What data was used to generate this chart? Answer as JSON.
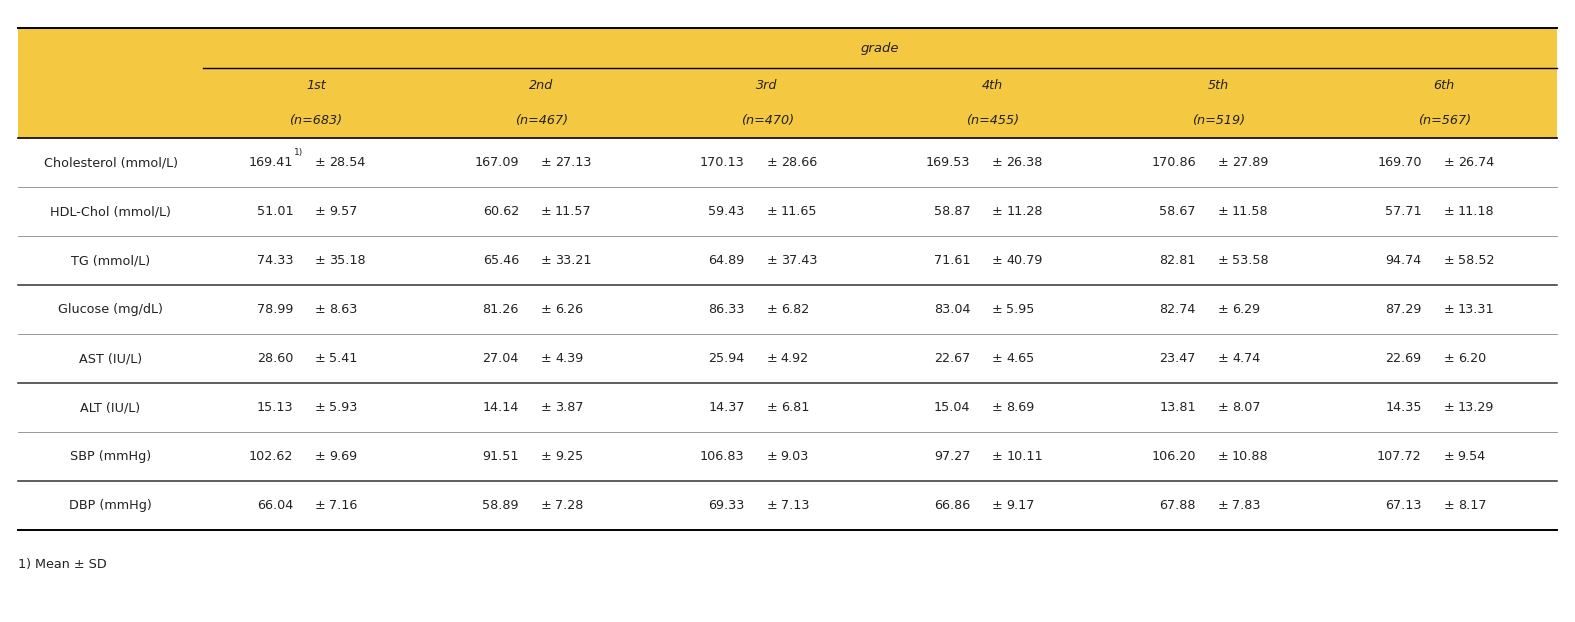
{
  "header_bg_color": "#F5C842",
  "table_bg_color": "#FFFFFF",
  "grade_label": "grade",
  "col_headers_line1": [
    "1st",
    "2nd",
    "3rd",
    "4th",
    "5th",
    "6th"
  ],
  "col_headers_line2": [
    "(n=683)",
    "(n=467)",
    "(n=470)",
    "(n=455)",
    "(n=519)",
    "(n=567)"
  ],
  "row_labels": [
    "Cholesterol (mmol/L)",
    "HDL-Chol (mmol/L)",
    "TG (mmol/L)",
    "Glucose (mg/dL)",
    "AST (IU/L)",
    "ALT (IU/L)",
    "SBP (mmHg)",
    "DBP (mmHg)"
  ],
  "data": [
    [
      [
        "169.41",
        "28.54",
        true
      ],
      [
        "167.09",
        "27.13",
        false
      ],
      [
        "170.13",
        "28.66",
        false
      ],
      [
        "169.53",
        "26.38",
        false
      ],
      [
        "170.86",
        "27.89",
        false
      ],
      [
        "169.70",
        "26.74",
        false
      ]
    ],
    [
      [
        "51.01",
        "9.57",
        false
      ],
      [
        "60.62",
        "11.57",
        false
      ],
      [
        "59.43",
        "11.65",
        false
      ],
      [
        "58.87",
        "11.28",
        false
      ],
      [
        "58.67",
        "11.58",
        false
      ],
      [
        "57.71",
        "11.18",
        false
      ]
    ],
    [
      [
        "74.33",
        "35.18",
        false
      ],
      [
        "65.46",
        "33.21",
        false
      ],
      [
        "64.89",
        "37.43",
        false
      ],
      [
        "71.61",
        "40.79",
        false
      ],
      [
        "82.81",
        "53.58",
        false
      ],
      [
        "94.74",
        "58.52",
        false
      ]
    ],
    [
      [
        "78.99",
        "8.63",
        false
      ],
      [
        "81.26",
        "6.26",
        false
      ],
      [
        "86.33",
        "6.82",
        false
      ],
      [
        "83.04",
        "5.95",
        false
      ],
      [
        "82.74",
        "6.29",
        false
      ],
      [
        "87.29",
        "13.31",
        false
      ]
    ],
    [
      [
        "28.60",
        "5.41",
        false
      ],
      [
        "27.04",
        "4.39",
        false
      ],
      [
        "25.94",
        "4.92",
        false
      ],
      [
        "22.67",
        "4.65",
        false
      ],
      [
        "23.47",
        "4.74",
        false
      ],
      [
        "22.69",
        "6.20",
        false
      ]
    ],
    [
      [
        "15.13",
        "5.93",
        false
      ],
      [
        "14.14",
        "3.87",
        false
      ],
      [
        "14.37",
        "6.81",
        false
      ],
      [
        "15.04",
        "8.69",
        false
      ],
      [
        "13.81",
        "8.07",
        false
      ],
      [
        "14.35",
        "13.29",
        false
      ]
    ],
    [
      [
        "102.62",
        "9.69",
        false
      ],
      [
        "91.51",
        "9.25",
        false
      ],
      [
        "106.83",
        "9.03",
        false
      ],
      [
        "97.27",
        "10.11",
        false
      ],
      [
        "106.20",
        "10.88",
        false
      ],
      [
        "107.72",
        "9.54",
        false
      ]
    ],
    [
      [
        "66.04",
        "7.16",
        false
      ],
      [
        "58.89",
        "7.28",
        false
      ],
      [
        "69.33",
        "7.13",
        false
      ],
      [
        "66.86",
        "9.17",
        false
      ],
      [
        "67.88",
        "7.83",
        false
      ],
      [
        "67.13",
        "8.17",
        false
      ]
    ]
  ],
  "footnote": "1) Mean ± SD",
  "text_color": "#222222",
  "header_text_color": "#222222",
  "thick_border_after_rows": [
    1,
    2,
    3,
    4,
    5,
    6,
    7
  ],
  "thick_line_after_rows": [
    2,
    4,
    6
  ],
  "thin_line_rows": [
    0,
    1,
    3,
    5,
    7
  ],
  "data_fontsize": 9.2,
  "row_label_fontsize": 9.2,
  "header_fontsize": 9.2,
  "grade_fontsize": 9.5
}
